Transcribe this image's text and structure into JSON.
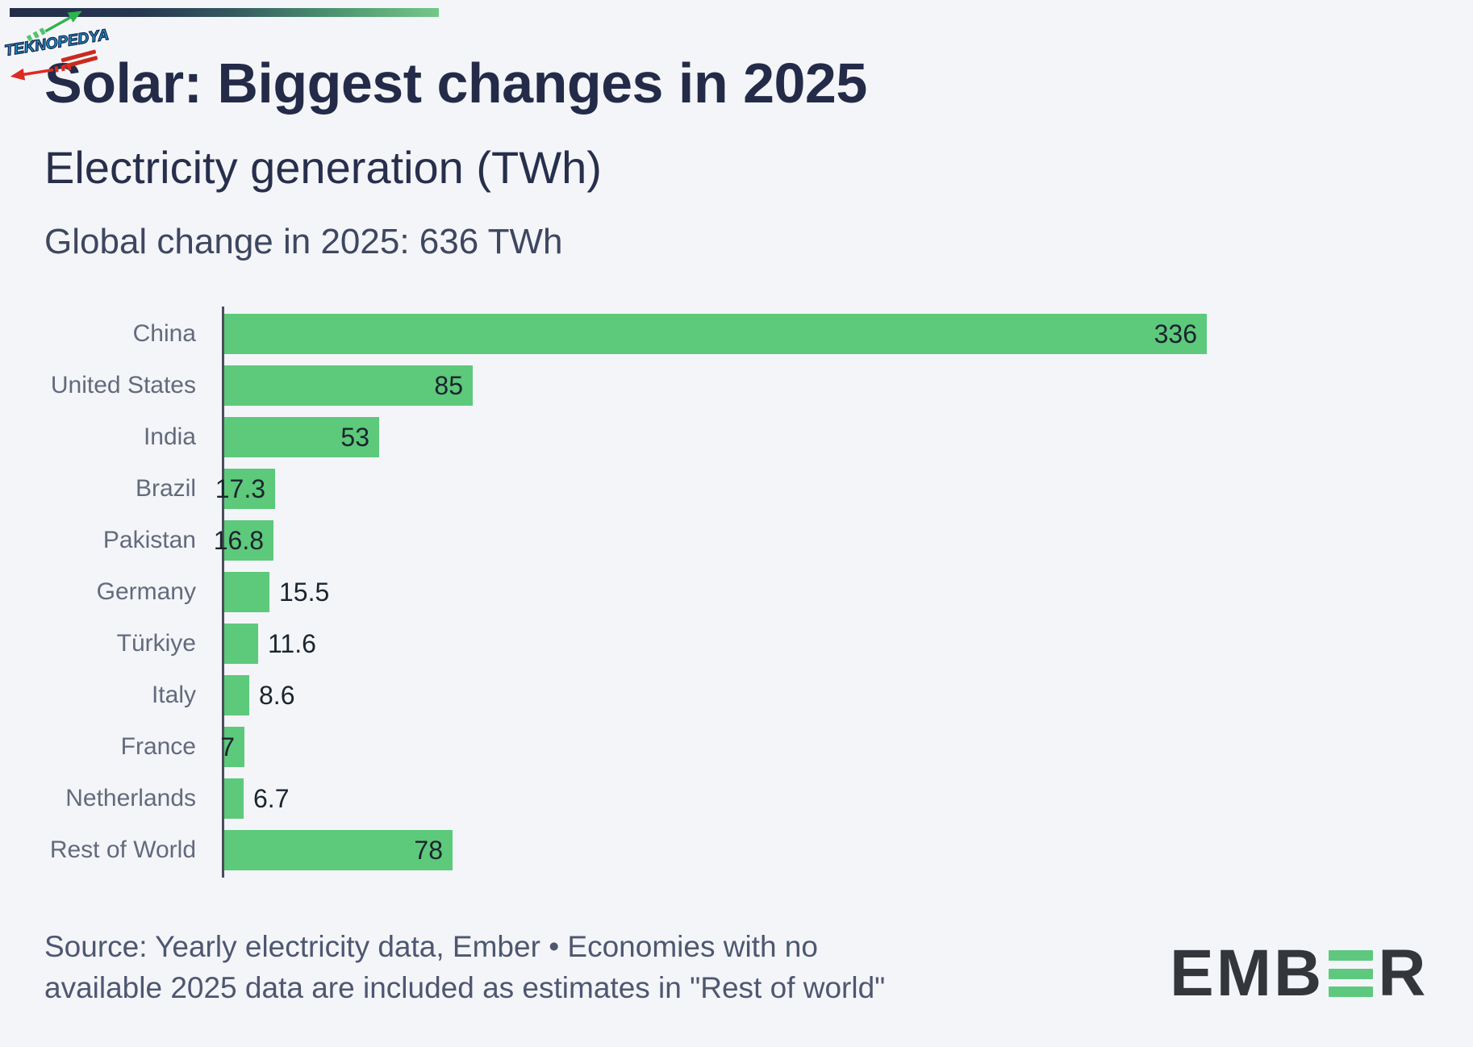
{
  "header": {
    "title": "Solar: Biggest changes in 2025",
    "subtitle": "Electricity generation (TWh)",
    "annotation": "Global change in 2025: 636 TWh"
  },
  "watermark": {
    "text": "TEKNOPEDYA"
  },
  "footer": {
    "source_lines": [
      "Source: Yearly electricity data, Ember • Economies with no",
      "available 2025 data are included as estimates in \"Rest of world\""
    ],
    "source_full": "Source: Yearly electricity data, Ember • Economies with no available 2025 data are included as estimates in \"Rest of world\"",
    "logo": {
      "part1": "EMB",
      "part2": "R",
      "name": "EMBER"
    }
  },
  "colors": {
    "background": "#f4f5f9",
    "bar": "#5dc97b",
    "title": "#232b48",
    "category_label": "#626a7c",
    "value_label": "#1a242e",
    "axis": "#4b4e5a",
    "source_text": "#4e5770",
    "gradient_start": "#232d4a",
    "gradient_end": "#74c887",
    "logo_dark": "#33373c",
    "logo_green": "#5ec97e",
    "watermark_blue": "#29a9e1",
    "watermark_green": "#2db44c",
    "watermark_red": "#dd2b22"
  },
  "chart_data": {
    "type": "bar",
    "orientation": "horizontal",
    "title": "Solar: Biggest changes in 2025",
    "subtitle": "Electricity generation (TWh)",
    "annotation": "Global change in 2025: 636 TWh",
    "unit": "TWh",
    "categories": [
      "China",
      "United States",
      "India",
      "Brazil",
      "Pakistan",
      "Germany",
      "Türkiye",
      "Italy",
      "France",
      "Netherlands",
      "Rest of World"
    ],
    "values": [
      336,
      85,
      53,
      17.3,
      16.8,
      15.5,
      11.6,
      8.6,
      7,
      6.7,
      78
    ],
    "value_labels": [
      "336",
      "85",
      "53",
      "17.3",
      "16.8",
      "15.5",
      "11.6",
      "8.6",
      "7",
      "6.7",
      "78"
    ],
    "value_label_inside": [
      true,
      true,
      true,
      true,
      true,
      false,
      false,
      false,
      true,
      false,
      true
    ],
    "xlim": [
      0,
      336
    ],
    "grid": false,
    "legend": false
  }
}
